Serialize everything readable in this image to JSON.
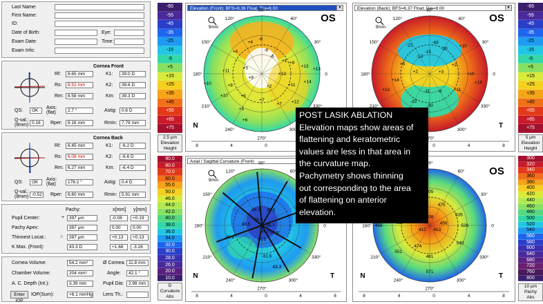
{
  "patient": {
    "last_name_label": "Last Name:",
    "first_name_label": "First Name:",
    "id_label": "ID:",
    "dob_label": "Date of Birth:",
    "eye_label": "Eye:",
    "exam_date_label": "Exam Date:",
    "time_label": "Time:",
    "exam_info_label": "Exam Info:"
  },
  "cornea_front": {
    "title": "Cornea Front",
    "rf_label": "Rf:",
    "rf": "8.65 mm",
    "rs_label": "Rs:",
    "rs": "8.52 mm",
    "rm_label": "Rm:",
    "rm": "8.58 mm",
    "k1_label": "K1:",
    "k1": "39.0 D",
    "k2_label": "K2:",
    "k2": "39.6 D",
    "km_label": "Km:",
    "km": "39.3 D",
    "qs_label": "QS:",
    "qs": "OK",
    "axis_label": "Axis: (flat)",
    "axis": "2.7 °",
    "astig_label": "Astig:",
    "astig": "0.6 D",
    "qval_label": "Q-val.: (8mm)",
    "qval": "0.16",
    "rper_label": "Rper:",
    "rper": "8.16 mm",
    "rmin_label": "Rmin:",
    "rmin": "7.79 mm"
  },
  "cornea_back": {
    "title": "Cornea Back",
    "rf_label": "Rf:",
    "rf": "6.45 mm",
    "rs_label": "Rs:",
    "rs": "6.08 mm",
    "rm_label": "Rm:",
    "rm": "6.27 mm",
    "k1_label": "K1:",
    "k1": "-6.2 D",
    "k2_label": "K2:",
    "k2": "-6.6 D",
    "km_label": "Km:",
    "km": "-6.4 D",
    "qs_label": "QS:",
    "qs": "OK",
    "axis_label": "Axis: (flat)",
    "axis": "178.2 °",
    "astig_label": "Astig:",
    "astig": "0.4 D",
    "qval_label": "Q-val.: (8mm)",
    "qval": "-0.52",
    "rper_label": "Rper:",
    "rper": "6.60 mm",
    "rmin_label": "Rmin:",
    "rmin": "5.91 mm"
  },
  "pachy": {
    "pachy_header": "Pachy:",
    "x_header": "x[mm]",
    "y_header": "y[mm]",
    "rows": [
      {
        "label": "Pupil Center:",
        "sym": "+",
        "pachy": "397 µm",
        "x": "-0.08",
        "y": "+0.19"
      },
      {
        "label": "Pachy Apex:",
        "sym": "",
        "pachy": "397 µm",
        "x": "0.00",
        "y": "0.00"
      },
      {
        "label": "Thinnest Locat.:",
        "sym": "○",
        "pachy": "397 µm",
        "x": "+0.13",
        "y": "+0.13"
      },
      {
        "label": "K Max. (Front):",
        "sym": "",
        "pachy": "43.3 D",
        "x": "+1.66",
        "y": "-3.26"
      }
    ]
  },
  "volumes": {
    "cornea_volume_label": "Cornea Volume:",
    "cornea_volume": "54.2 mm³",
    "o_cornea_label": "Ø Cornea:",
    "o_cornea": "11.8 mm",
    "chamber_volume_label": "Chamber Volume:",
    "chamber_volume": "204 mm³",
    "angle_label": "Angle:",
    "angle": "42.1 °",
    "acd_label": "A. C. Depth (Int.):",
    "acd": "3.39 mm",
    "pupil_dia_label": "Pupil Dia:",
    "pupil_dia": "2.98 mm",
    "iop_label": "Enter IOP",
    "iop_sum_label": "IOP(Sum):",
    "iop_sum": "+6.1 mmHg",
    "lens_label": "Lens Th.:"
  },
  "scale_elevation_front": {
    "values": [
      "-65",
      "-55",
      "-45",
      "-35",
      "-25",
      "-15",
      "-5",
      "+5",
      "+15",
      "+25",
      "+35",
      "+45",
      "+55",
      "+65",
      "+75"
    ],
    "colors": [
      "#3b1f6e",
      "#4a2a9a",
      "#2a3fc8",
      "#1f66ee",
      "#1e9bf0",
      "#22c7e4",
      "#33d8a8",
      "#88e060",
      "#d8ea3a",
      "#f4d020",
      "#f6a418",
      "#f07018",
      "#e23a18",
      "#c81a28",
      "#a4102e"
    ],
    "foot": [
      "2.5 µm",
      "Elevation",
      "Height"
    ]
  },
  "scale_elevation_back": {
    "values": [
      "-65",
      "-55",
      "-45",
      "-35",
      "-25",
      "-15",
      "-5",
      "+5",
      "+15",
      "+25",
      "+35",
      "+45",
      "+55",
      "+65",
      "+75"
    ],
    "colors": [
      "#3b1f6e",
      "#4a2a9a",
      "#2a3fc8",
      "#1f66ee",
      "#1e9bf0",
      "#22c7e4",
      "#33d8a8",
      "#88e060",
      "#d8ea3a",
      "#f4d020",
      "#f6a418",
      "#f07018",
      "#e23a18",
      "#c81a28",
      "#a4102e"
    ],
    "foot": [
      "5 µm",
      "Elevation",
      "Height"
    ]
  },
  "scale_curvature": {
    "values": [
      "90.0",
      "80.0",
      "70.0",
      "60.0",
      "55.0",
      "50.0",
      "46.0",
      "44.0",
      "42.0",
      "40.0",
      "38.0",
      "36.0",
      "34.0",
      "32.0",
      "30.0",
      "28.0",
      "26.0",
      "20.0",
      "10.0"
    ],
    "colors": [
      "#a4102e",
      "#c81a28",
      "#e23a18",
      "#f07018",
      "#f6a418",
      "#f4d020",
      "#d8ea3a",
      "#b0e850",
      "#88e060",
      "#55d880",
      "#33d8a8",
      "#22c7e4",
      "#1e9bf0",
      "#1f66ee",
      "#2a3fc8",
      "#3a30b0",
      "#4a2a9a",
      "#5a2080",
      "#3b1f6e"
    ],
    "foot": [
      "D",
      "Curvature",
      "Abs"
    ]
  },
  "scale_pachy": {
    "values": [
      "300",
      "320",
      "340",
      "360",
      "380",
      "400",
      "420",
      "440",
      "460",
      "480",
      "500",
      "520",
      "540",
      "560",
      "580",
      "600",
      "640",
      "680",
      "720",
      "760",
      "800"
    ],
    "colors": [
      "#a4102e",
      "#c81a28",
      "#e23a18",
      "#f07018",
      "#f6a418",
      "#f4d020",
      "#d8ea3a",
      "#b0e850",
      "#88e060",
      "#55d880",
      "#33d8a8",
      "#22c7e4",
      "#1e9bf0",
      "#1f66ee",
      "#2a3fc8",
      "#3a30b0",
      "#4a2a9a",
      "#5a2080",
      "#6a2070",
      "#4a1a5a",
      "#3b1f6e"
    ],
    "foot": [
      "10 µm",
      "Pachy",
      "Abs"
    ]
  },
  "maps": {
    "front_title": "Elevation (Front): BFS=8.36 Float, Dia=8.00",
    "back_title": "Elevation (Back): BFS=6.37 Float, Dia=8.00",
    "curv_title": "Axial / Sagittal Curvature (Front)",
    "eye": "OS",
    "zoom": "9mm",
    "nasal": "N",
    "temporal": "T",
    "angles": [
      "90°",
      "120°",
      "60°",
      "150°",
      "30°",
      "180°",
      "0",
      "210°",
      "330°",
      "240°",
      "300°",
      "270°"
    ],
    "x_ticks": [
      "8",
      "4",
      "0",
      "4",
      "8"
    ],
    "front_values": [
      "+4",
      "+4",
      "-8",
      "-8",
      "-6",
      "+1",
      "+9",
      "+13",
      "+11",
      "+8",
      "+5",
      "+9",
      "+13",
      "+11",
      "+14",
      "+10",
      "+8",
      "+5",
      "+7",
      "+7",
      "+12",
      "+10",
      "+13",
      "+6",
      "+2"
    ],
    "back_values": [
      "-21",
      "-43",
      "-20",
      "-15",
      "-13",
      "+5",
      "+2",
      "+3",
      "+2",
      "+10",
      "+14",
      "+12",
      "+10",
      "+14",
      "-11",
      "-6",
      "+11",
      "-30",
      "-22"
    ],
    "curv_values": [
      "39.1",
      "38.8",
      "39.0",
      "38.5",
      "39.0",
      "38.7",
      "38.6",
      "40.0",
      "40.8",
      "41.6",
      "43.3"
    ],
    "pachy_values": [
      "505",
      "473",
      "475",
      "535",
      "427",
      "408",
      "456",
      "468",
      "412",
      "413",
      "526",
      "474",
      "468",
      "551",
      "481",
      "540",
      "571"
    ]
  },
  "overlay": {
    "lines": [
      "POST LASIK ABLATION",
      "Elevation maps show areas of",
      "flattening and keratometric",
      "values are less in that area in",
      "the curvature map.",
      "Pachymetry shows thinning",
      "out corresponding to the area",
      "of flattening on anterior",
      "elevation."
    ]
  }
}
